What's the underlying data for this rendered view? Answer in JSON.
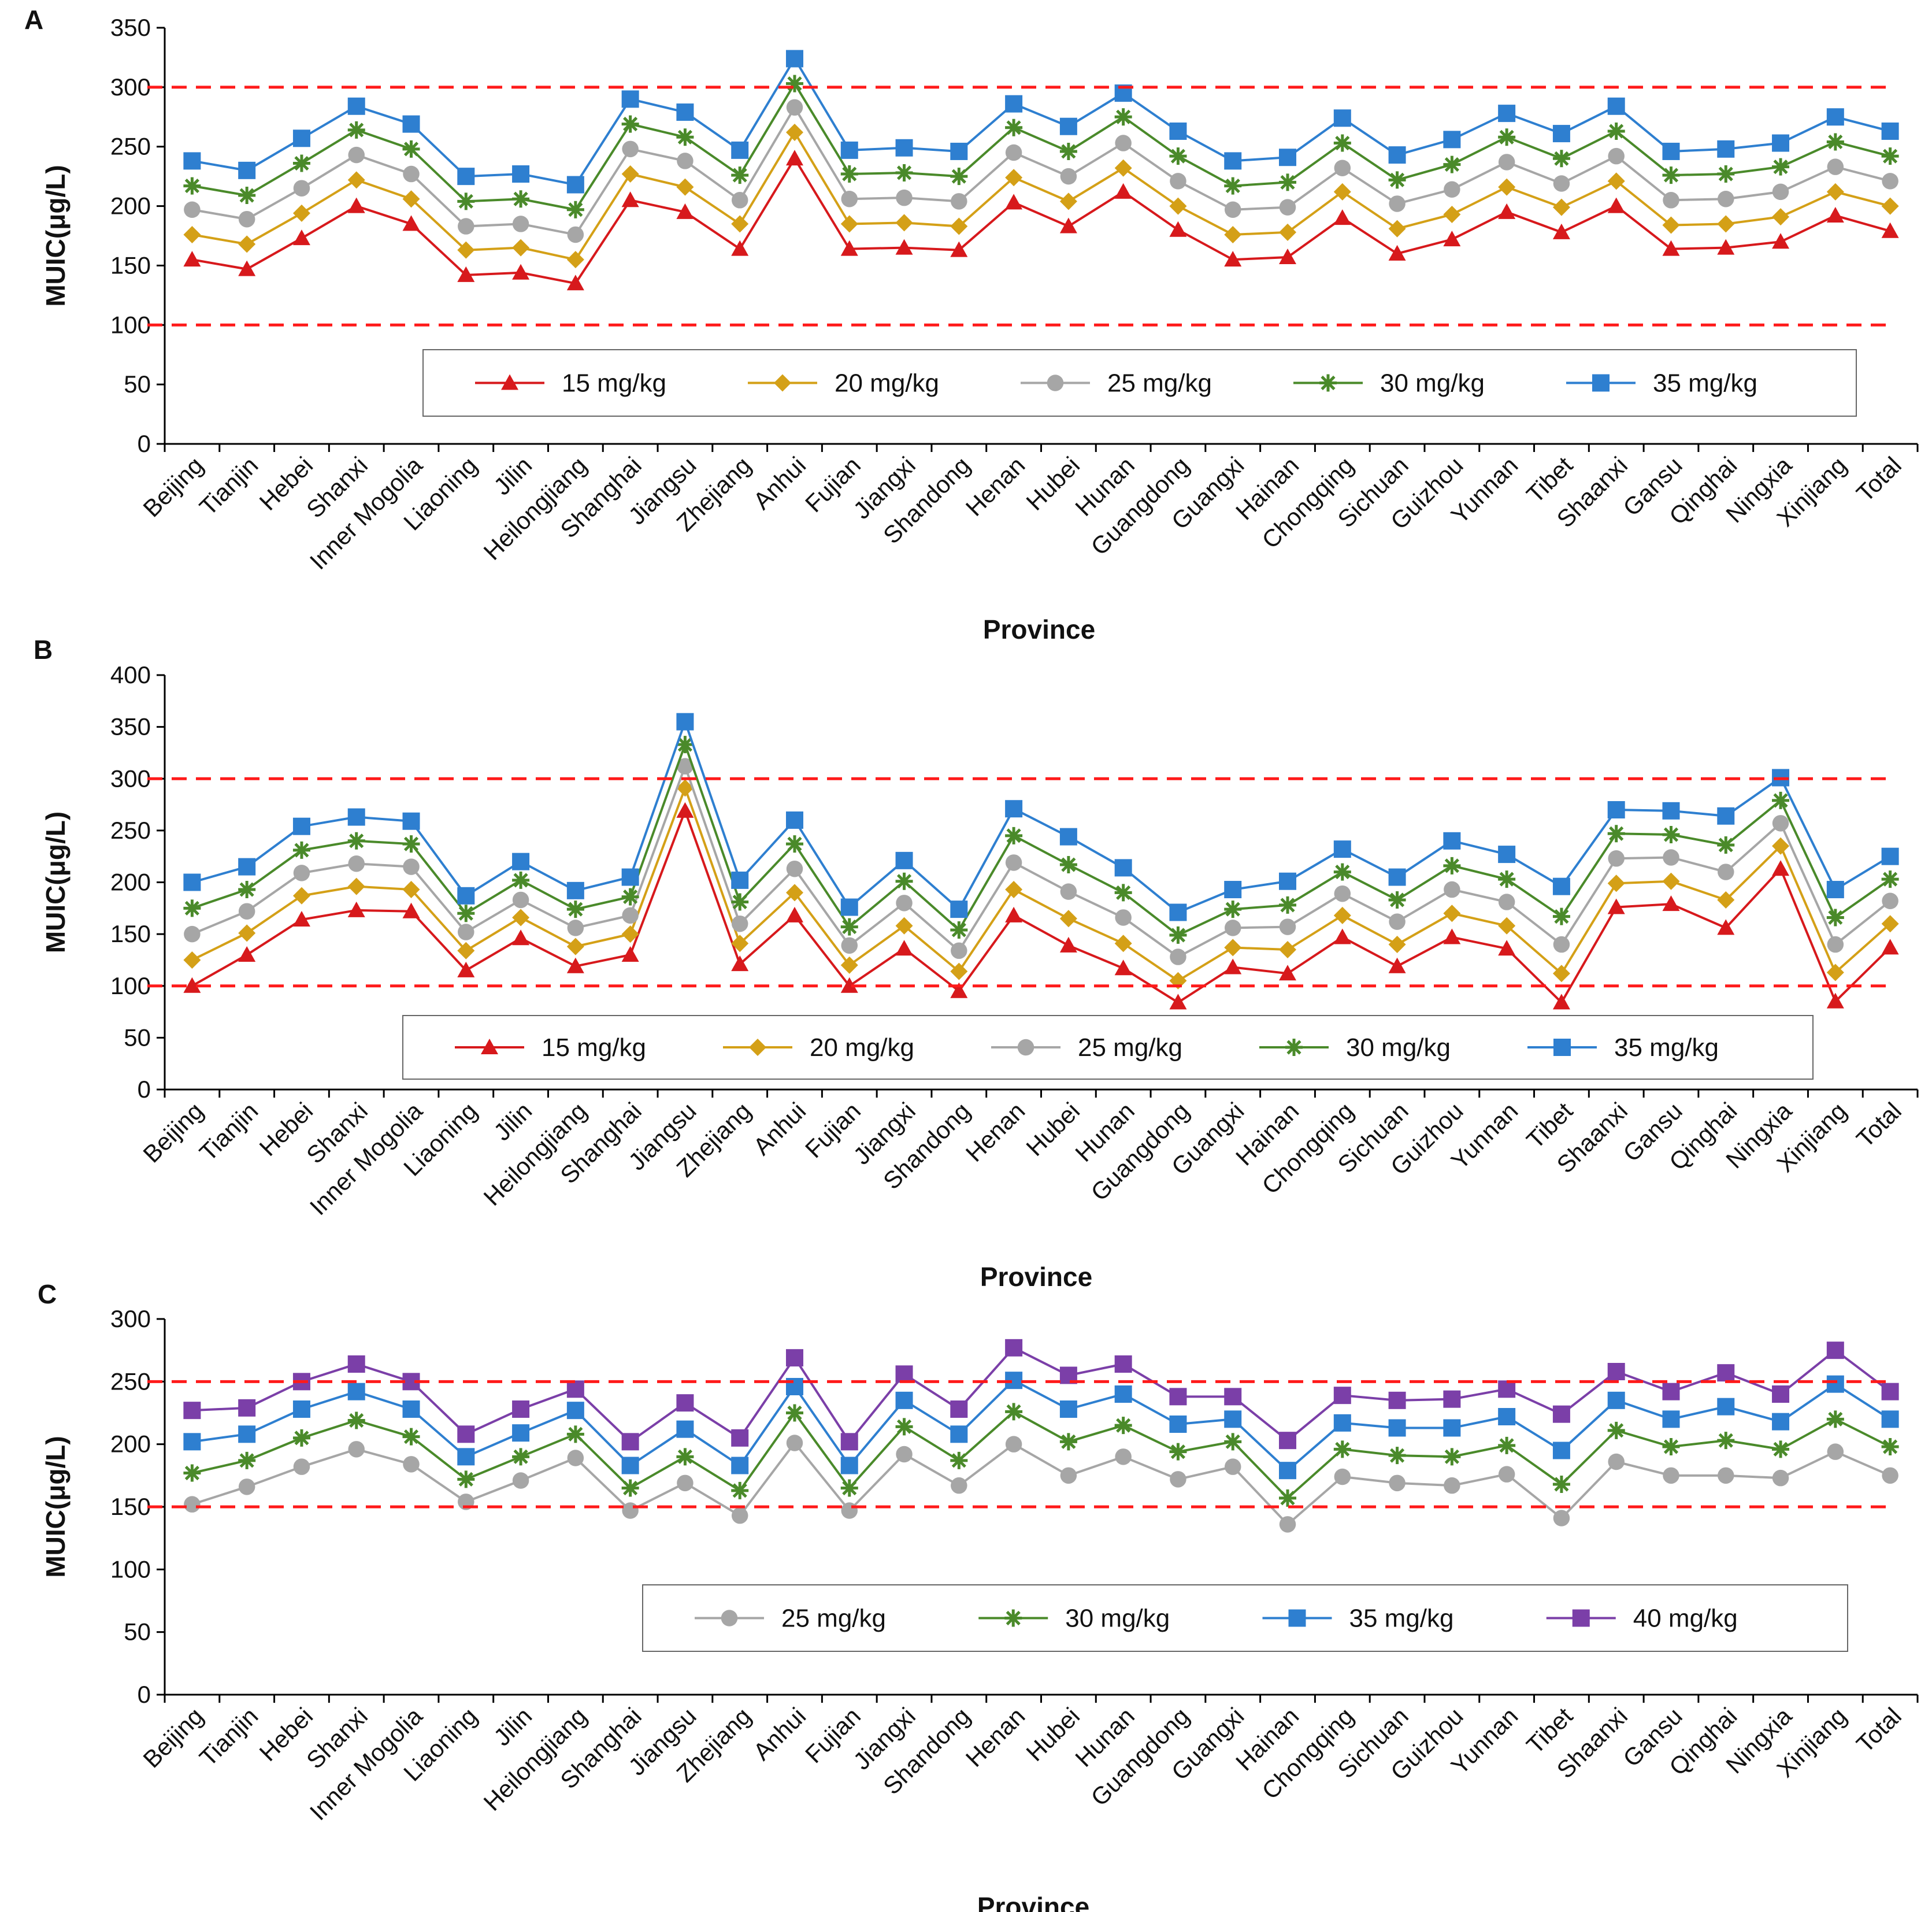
{
  "colors": {
    "15 mg/kg": "#d7191c",
    "20 mg/kg": "#d4a017",
    "25 mg/kg": "#a6a6a6",
    "30 mg/kg": "#4a8a2a",
    "35 mg/kg": "#2e7fd0",
    "40 mg/kg": "#7b3fa8",
    "reference_line": "#ff1a1a"
  },
  "chart_data": [
    {
      "type": "line",
      "panel_label": "A",
      "ylabel": "MUIC(μg/L)",
      "xlabel": "Province",
      "ylim": [
        0,
        350
      ],
      "yticks": [
        0,
        50,
        100,
        150,
        200,
        250,
        300,
        350
      ],
      "reference_lines": [
        100,
        300
      ],
      "categories": [
        "Beijing",
        "Tianjin",
        "Hebei",
        "Shanxi",
        "Inner Mogolia",
        "Liaoning",
        "Jilin",
        "Heilongjiang",
        "Shanghai",
        "Jiangsu",
        "Zhejiang",
        "Anhui",
        "Fujian",
        "Jiangxi",
        "Shandong",
        "Henan",
        "Hubei",
        "Hunan",
        "Guangdong",
        "Guangxi",
        "Hainan",
        "Chongqing",
        "Sichuan",
        "Guizhou",
        "Yunnan",
        "Tibet",
        "Shaanxi",
        "Gansu",
        "Qinghai",
        "Ningxia",
        "Xinjiang",
        "Total"
      ],
      "series": [
        {
          "name": "15 mg/kg",
          "marker": "triangle",
          "values": [
            155,
            147,
            173,
            200,
            185,
            142,
            144,
            135,
            205,
            195,
            164,
            240,
            164,
            165,
            163,
            203,
            183,
            212,
            180,
            155,
            157,
            190,
            160,
            172,
            195,
            178,
            200,
            164,
            165,
            170,
            192,
            179
          ]
        },
        {
          "name": "20 mg/kg",
          "marker": "diamond",
          "values": [
            176,
            168,
            194,
            222,
            206,
            163,
            165,
            155,
            227,
            216,
            185,
            262,
            185,
            186,
            183,
            224,
            204,
            232,
            200,
            176,
            178,
            212,
            181,
            193,
            216,
            199,
            221,
            184,
            185,
            191,
            212,
            200
          ]
        },
        {
          "name": "25 mg/kg",
          "marker": "circle",
          "values": [
            197,
            189,
            215,
            243,
            227,
            183,
            185,
            176,
            248,
            238,
            205,
            283,
            206,
            207,
            204,
            245,
            225,
            253,
            221,
            197,
            199,
            232,
            202,
            214,
            237,
            219,
            242,
            205,
            206,
            212,
            233,
            221
          ]
        },
        {
          "name": "30 mg/kg",
          "marker": "star",
          "values": [
            217,
            209,
            236,
            264,
            248,
            204,
            206,
            197,
            269,
            258,
            226,
            303,
            227,
            228,
            225,
            266,
            246,
            275,
            242,
            217,
            220,
            253,
            222,
            235,
            258,
            240,
            263,
            226,
            227,
            233,
            254,
            242
          ]
        },
        {
          "name": "35 mg/kg",
          "marker": "square",
          "values": [
            238,
            230,
            257,
            284,
            269,
            225,
            227,
            218,
            290,
            279,
            247,
            324,
            247,
            249,
            246,
            286,
            267,
            295,
            263,
            238,
            241,
            274,
            243,
            256,
            278,
            261,
            284,
            246,
            248,
            253,
            275,
            263
          ]
        }
      ],
      "legend": [
        "15 mg/kg",
        "20 mg/kg",
        "25 mg/kg",
        "30 mg/kg",
        "35 mg/kg"
      ]
    },
    {
      "type": "line",
      "panel_label": "B",
      "ylabel": "MUIC(μg/L)",
      "xlabel": "Province",
      "ylim": [
        0,
        400
      ],
      "yticks": [
        0,
        50,
        100,
        150,
        200,
        250,
        300,
        350,
        400
      ],
      "reference_lines": [
        100,
        300
      ],
      "categories": [
        "Beijing",
        "Tianjin",
        "Hebei",
        "Shanxi",
        "Inner Mogolia",
        "Liaoning",
        "Jilin",
        "Heilongjiang",
        "Shanghai",
        "Jiangsu",
        "Zhejiang",
        "Anhui",
        "Fujian",
        "Jiangxi",
        "Shandong",
        "Henan",
        "Hubei",
        "Hunan",
        "Guangdong",
        "Guangxi",
        "Hainan",
        "Chongqing",
        "Sichuan",
        "Guizhou",
        "Yunnan",
        "Tibet",
        "Shaanxi",
        "Gansu",
        "Qinghai",
        "Ningxia",
        "Xinjiang",
        "Total"
      ],
      "series": [
        {
          "name": "15 mg/kg",
          "marker": "triangle",
          "values": [
            100,
            130,
            164,
            173,
            172,
            115,
            146,
            119,
            130,
            269,
            121,
            168,
            100,
            136,
            95,
            168,
            139,
            117,
            84,
            118,
            112,
            147,
            119,
            147,
            136,
            84,
            176,
            179,
            156,
            213,
            85,
            137
          ]
        },
        {
          "name": "20 mg/kg",
          "marker": "diamond",
          "values": [
            125,
            151,
            187,
            196,
            193,
            134,
            166,
            138,
            150,
            291,
            141,
            190,
            120,
            158,
            114,
            193,
            165,
            141,
            105,
            137,
            135,
            168,
            140,
            170,
            158,
            112,
            199,
            201,
            183,
            235,
            113,
            160
          ]
        },
        {
          "name": "25 mg/kg",
          "marker": "circle",
          "values": [
            150,
            172,
            209,
            218,
            215,
            152,
            183,
            156,
            168,
            312,
            160,
            213,
            139,
            180,
            134,
            219,
            191,
            166,
            128,
            156,
            157,
            189,
            162,
            193,
            181,
            140,
            223,
            224,
            210,
            257,
            140,
            182
          ]
        },
        {
          "name": "30 mg/kg",
          "marker": "star",
          "values": [
            175,
            193,
            231,
            240,
            237,
            170,
            202,
            174,
            186,
            333,
            181,
            237,
            157,
            201,
            154,
            245,
            217,
            190,
            149,
            174,
            178,
            210,
            183,
            216,
            203,
            167,
            247,
            246,
            236,
            279,
            166,
            203
          ]
        },
        {
          "name": "35 mg/kg",
          "marker": "square",
          "values": [
            200,
            215,
            254,
            263,
            259,
            187,
            220,
            192,
            205,
            355,
            202,
            260,
            176,
            221,
            174,
            271,
            244,
            214,
            171,
            193,
            201,
            232,
            205,
            240,
            227,
            196,
            270,
            269,
            264,
            301,
            193,
            225
          ]
        }
      ],
      "legend": [
        "15 mg/kg",
        "20 mg/kg",
        "25 mg/kg",
        "30 mg/kg",
        "35 mg/kg"
      ]
    },
    {
      "type": "line",
      "panel_label": "C",
      "ylabel": "MUIC(μg/L)",
      "xlabel": "Province",
      "ylim": [
        0,
        300
      ],
      "yticks": [
        0,
        50,
        100,
        150,
        200,
        250,
        300
      ],
      "reference_lines": [
        150,
        250
      ],
      "categories": [
        "Beijing",
        "Tianjin",
        "Hebei",
        "Shanxi",
        "Inner Mogolia",
        "Liaoning",
        "Jilin",
        "Heilongjiang",
        "Shanghai",
        "Jiangsu",
        "Zhejiang",
        "Anhui",
        "Fujian",
        "Jiangxi",
        "Shandong",
        "Henan",
        "Hubei",
        "Hunan",
        "Guangdong",
        "Guangxi",
        "Hainan",
        "Chongqing",
        "Sichuan",
        "Guizhou",
        "Yunnan",
        "Tibet",
        "Shaanxi",
        "Gansu",
        "Qinghai",
        "Ningxia",
        "Xinjiang",
        "Total"
      ],
      "series": [
        {
          "name": "25 mg/kg",
          "marker": "circle",
          "values": [
            152,
            166,
            182,
            196,
            184,
            154,
            171,
            189,
            147,
            169,
            143,
            201,
            147,
            192,
            167,
            200,
            175,
            190,
            172,
            182,
            136,
            174,
            169,
            167,
            176,
            141,
            186,
            175,
            175,
            173,
            194,
            175
          ]
        },
        {
          "name": "30 mg/kg",
          "marker": "star",
          "values": [
            177,
            187,
            205,
            219,
            206,
            172,
            190,
            208,
            165,
            190,
            163,
            225,
            165,
            214,
            187,
            226,
            202,
            215,
            194,
            202,
            157,
            196,
            191,
            190,
            199,
            168,
            211,
            198,
            203,
            196,
            220,
            198
          ]
        },
        {
          "name": "35 mg/kg",
          "marker": "square",
          "values": [
            202,
            208,
            228,
            242,
            228,
            190,
            209,
            227,
            183,
            212,
            183,
            246,
            183,
            235,
            208,
            251,
            228,
            240,
            216,
            220,
            179,
            217,
            213,
            213,
            222,
            195,
            235,
            220,
            230,
            218,
            248,
            220
          ]
        },
        {
          "name": "40 mg/kg",
          "marker": "square",
          "values": [
            227,
            229,
            250,
            264,
            250,
            208,
            228,
            244,
            202,
            233,
            205,
            269,
            202,
            256,
            228,
            277,
            255,
            264,
            238,
            238,
            203,
            239,
            235,
            236,
            244,
            224,
            258,
            242,
            257,
            240,
            275,
            242
          ]
        }
      ],
      "legend": [
        "25 mg/kg",
        "30 mg/kg",
        "35 mg/kg",
        "40 mg/kg"
      ]
    }
  ]
}
